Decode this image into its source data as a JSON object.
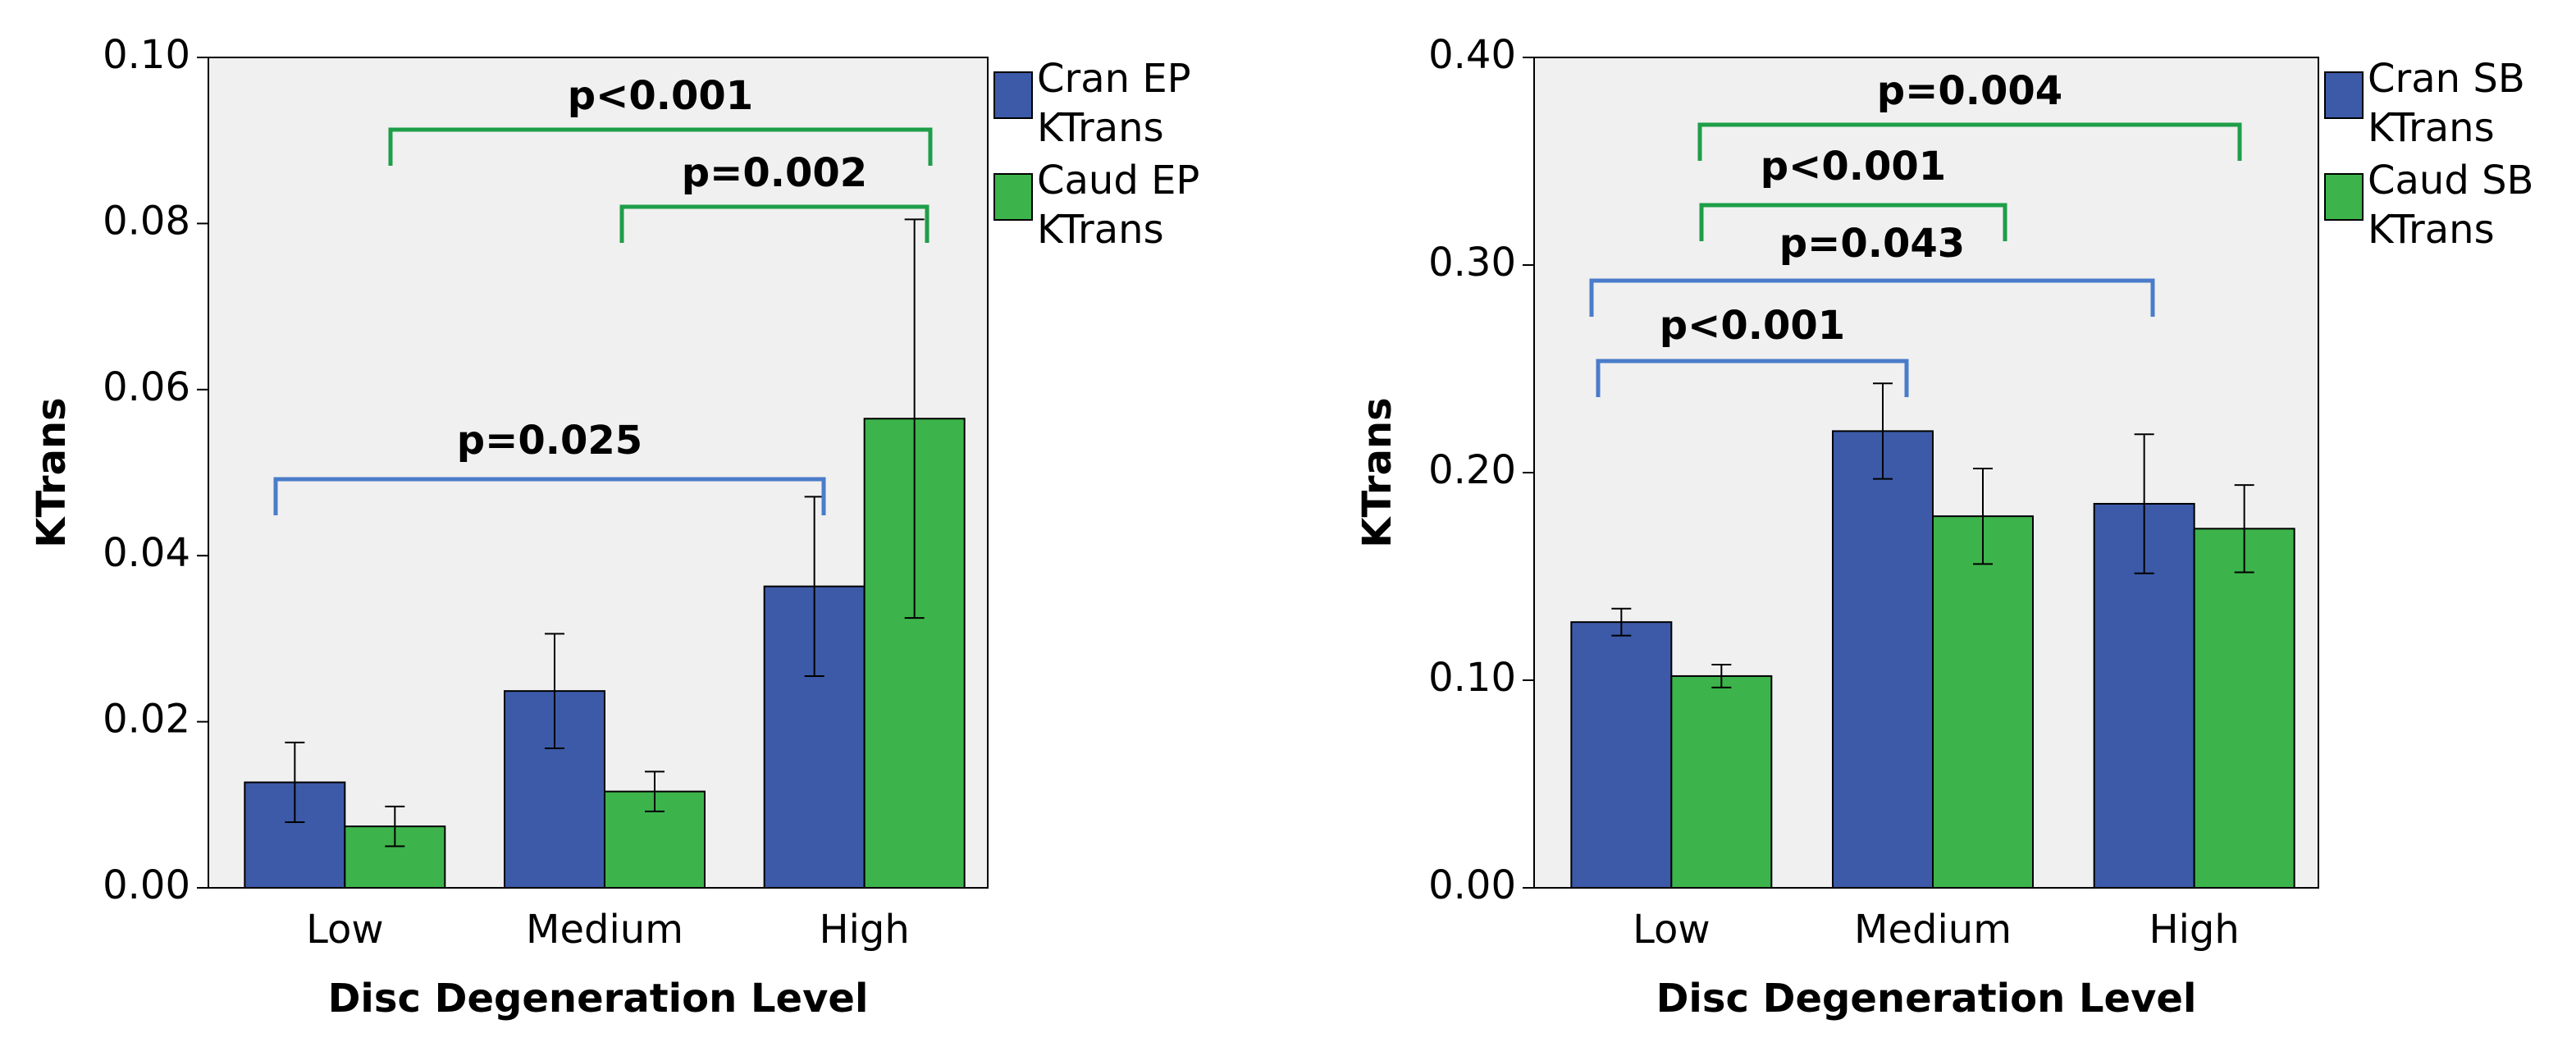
{
  "chart_data": [
    {
      "type": "bar",
      "x_label": "Disc Degeneration Level",
      "y_label": "KTrans",
      "categories": [
        "Low",
        "Medium",
        "High"
      ],
      "series": [
        {
          "name": "Cran EP KTrans",
          "color": "#3c5aa8",
          "values": [
            0.0127,
            0.0237,
            0.0363
          ],
          "errors": [
            0.0048,
            0.0069,
            0.0108
          ]
        },
        {
          "name": "Caud EP KTrans",
          "color": "#3cb44b",
          "values": [
            0.0074,
            0.0116,
            0.0565
          ],
          "errors": [
            0.0024,
            0.0024,
            0.024
          ]
        }
      ],
      "ylim": [
        0,
        0.1
      ],
      "yticks": [
        {
          "value": 0,
          "label": "0.00"
        },
        {
          "value": 0.02,
          "label": "0.02"
        },
        {
          "value": 0.04,
          "label": "0.04"
        },
        {
          "value": 0.06,
          "label": "0.06"
        },
        {
          "value": 0.08,
          "label": "0.08"
        },
        {
          "value": 0.1,
          "label": "0.10"
        }
      ],
      "annotations": [
        {
          "text": "p<0.001",
          "color": "#1e9e48"
        },
        {
          "text": "p=0.002",
          "color": "#1e9e48"
        },
        {
          "text": "p=0.025",
          "color": "#4a7cc9"
        }
      ]
    },
    {
      "type": "bar",
      "x_label": "Disc Degeneration Level",
      "y_label": "KTrans",
      "categories": [
        "Low",
        "Medium",
        "High"
      ],
      "series": [
        {
          "name": "Cran SB KTrans",
          "color": "#3c5aa8",
          "values": [
            0.128,
            0.22,
            0.185
          ],
          "errors": [
            0.0065,
            0.023,
            0.0335
          ]
        },
        {
          "name": "Caud SB KTrans",
          "color": "#3cb44b",
          "values": [
            0.102,
            0.179,
            0.173
          ],
          "errors": [
            0.0055,
            0.023,
            0.021
          ]
        }
      ],
      "ylim": [
        0,
        0.4
      ],
      "yticks": [
        {
          "value": 0,
          "label": "0.00"
        },
        {
          "value": 0.1,
          "label": "0.10"
        },
        {
          "value": 0.2,
          "label": "0.20"
        },
        {
          "value": 0.3,
          "label": "0.30"
        },
        {
          "value": 0.4,
          "label": "0.40"
        }
      ],
      "annotations": [
        {
          "text": "p=0.004",
          "color": "#1e9e48"
        },
        {
          "text": "p<0.001",
          "color": "#1e9e48"
        },
        {
          "text": "p=0.043",
          "color": "#4a7cc9"
        },
        {
          "text": "p<0.001",
          "color": "#4a7cc9"
        }
      ]
    }
  ]
}
